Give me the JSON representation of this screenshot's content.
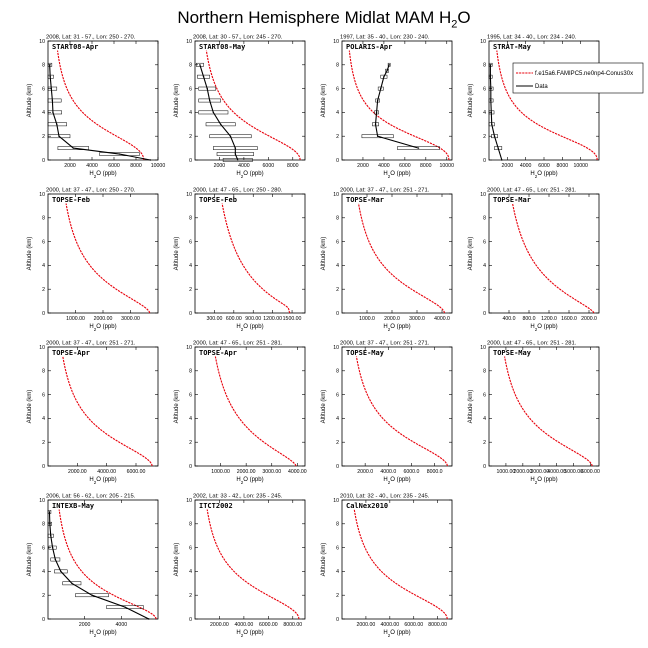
{
  "title": {
    "main": "Northern Hemisphere Midlat MAM H",
    "sub": "2",
    "tail": "O"
  },
  "legend": {
    "model_label": "f.e15a6.FAMIPC5.ne0np4-Conus30x",
    "data_label": "Data",
    "colors": {
      "model": "#e8000b",
      "data": "#000000"
    }
  },
  "axis_labels": {
    "ylabel": "Altitude (km)",
    "xlabel_main": "H",
    "xlabel_sub": "2",
    "xlabel_tail": "O (ppb)"
  },
  "chart_data": [
    {
      "type": "line",
      "header": "2008, Lat: 31 - 57., Lon: 250 - 270.",
      "title": "START08-Apr",
      "xlim": [
        0,
        10000
      ],
      "ylim": [
        0,
        10
      ],
      "xticks": [
        2000,
        4000,
        6000,
        8000,
        10000
      ],
      "xtick_labels": [
        "2000",
        "4000",
        "6000",
        "8000",
        "10000"
      ],
      "yticks": [
        0,
        2,
        4,
        6,
        8,
        10
      ],
      "ytick_labels": [
        "0",
        "2",
        "4",
        "6",
        "8",
        "10"
      ],
      "model": {
        "surface": 8700,
        "top": 200,
        "knee": 3.0,
        "p": 2.2,
        "mid": 0.44
      },
      "data": {
        "x": [
          9300,
          6500,
          2300,
          1000,
          800,
          450,
          400,
          300,
          200,
          150
        ],
        "y": [
          0,
          0.5,
          1,
          2,
          3,
          4,
          5,
          6,
          7,
          8
        ],
        "err": [
          0,
          1800,
          1400,
          1000,
          900,
          800,
          800,
          500,
          300,
          200
        ]
      }
    },
    {
      "type": "line",
      "header": "2008, Lat: 30 - 57., Lon: 245 - 270.",
      "title": "START08-May",
      "xlim": [
        0,
        9000
      ],
      "ylim": [
        0,
        10
      ],
      "xticks": [
        2000,
        4000,
        6000,
        8000
      ],
      "xtick_labels": [
        "2000",
        "4000",
        "6000",
        "8000"
      ],
      "yticks": [
        0,
        2,
        4,
        6,
        8,
        10
      ],
      "ytick_labels": [
        "0",
        "2",
        "4",
        "6",
        "8",
        "10"
      ],
      "model": {
        "surface": 8600,
        "top": 200,
        "knee": 3.0,
        "p": 2.1,
        "mid": 0.44
      },
      "data": {
        "x": [
          3500,
          3300,
          3300,
          2900,
          2100,
          1500,
          1200,
          1000,
          700,
          400
        ],
        "y": [
          0,
          0.5,
          1,
          2,
          3,
          4,
          5,
          6,
          7,
          8
        ],
        "err": [
          1200,
          1500,
          1800,
          1700,
          1200,
          1200,
          900,
          700,
          500,
          300
        ]
      }
    },
    {
      "type": "line",
      "header": "1997, Lat: 35 - 40., Lon: 230 - 240.",
      "title": "POLARIS-Apr",
      "xlim": [
        0,
        10500
      ],
      "ylim": [
        0,
        10
      ],
      "xticks": [
        2000,
        4000,
        6000,
        8000,
        10000
      ],
      "xtick_labels": [
        "2000",
        "4000",
        "6000",
        "8000",
        "10000"
      ],
      "yticks": [
        0,
        2,
        4,
        6,
        8,
        10
      ],
      "ytick_labels": [
        "0",
        "2",
        "4",
        "6",
        "8",
        "10"
      ],
      "model": {
        "surface": 10200,
        "top": 200,
        "knee": 2.7,
        "p": 2.4,
        "mid": 0.44
      },
      "data": {
        "x": [
          7300,
          3400,
          3200,
          3300,
          3400,
          3700,
          4000,
          4300,
          4500
        ],
        "y": [
          1,
          2,
          3,
          4,
          5,
          6,
          7,
          7.5,
          8
        ],
        "err": [
          2000,
          1500,
          300,
          200,
          200,
          250,
          300,
          150,
          100
        ]
      }
    },
    {
      "type": "line",
      "header": "1995, Lat: 34 - 40., Lon: 234 - 240.",
      "title": "STRAT-May",
      "xlim": [
        0,
        12000
      ],
      "ylim": [
        0,
        10
      ],
      "xticks": [
        2000,
        4000,
        6000,
        8000,
        10000
      ],
      "xtick_labels": [
        "2000",
        "4000",
        "6000",
        "8000",
        "10000"
      ],
      "yticks": [
        0,
        2,
        4,
        6,
        8,
        10
      ],
      "ytick_labels": [
        "0",
        "2",
        "4",
        "6",
        "8",
        "10"
      ],
      "model": {
        "surface": 11800,
        "top": 200,
        "knee": 2.7,
        "p": 2.3,
        "mid": 0.44
      },
      "data": {
        "x": [
          1400,
          1000,
          600,
          300,
          250,
          200,
          200,
          150,
          150
        ],
        "y": [
          0,
          1,
          2,
          3,
          4,
          5,
          6,
          7,
          8
        ],
        "err": [
          0,
          400,
          350,
          300,
          300,
          250,
          250,
          200,
          200
        ]
      },
      "has_legend": true
    },
    {
      "type": "line",
      "header": "2000, Lat: 37 - 47., Lon: 250 - 270.",
      "title": "TOPSE-Feb",
      "xlim": [
        0,
        4000
      ],
      "ylim": [
        0,
        10
      ],
      "xticks": [
        1000,
        2000,
        3000
      ],
      "xtick_labels": [
        "1000.00",
        "2000.00",
        "3000.00"
      ],
      "yticks": [
        0,
        2,
        4,
        6,
        8,
        10
      ],
      "ytick_labels": [
        "0",
        "2",
        "4",
        "6",
        "8",
        "10"
      ],
      "model": {
        "surface": 3700,
        "top": 150,
        "knee": 3.0,
        "p": 1.6,
        "mid": 0.42
      }
    },
    {
      "type": "line",
      "header": "2000, Lat: 47 - 65., Lon: 250 - 280.",
      "title": "TOPSE-Feb",
      "xlim": [
        0,
        1700
      ],
      "ylim": [
        0,
        10
      ],
      "xticks": [
        300,
        600,
        900,
        1200,
        1500
      ],
      "xtick_labels": [
        "300.00",
        "600.00",
        "900.00",
        "1200.00",
        "1500.00"
      ],
      "yticks": [
        0,
        2,
        4,
        6,
        8,
        10
      ],
      "ytick_labels": [
        "0",
        "2",
        "4",
        "6",
        "8",
        "10"
      ],
      "model": {
        "surface": 1580,
        "top": 80,
        "knee": 3.3,
        "p": 1.2,
        "mid": 0.45,
        "bulge": 1
      }
    },
    {
      "type": "line",
      "header": "2000, Lat: 37 - 47., Lon: 251 - 271.",
      "title": "TOPSE-Mar",
      "xlim": [
        0,
        4400
      ],
      "ylim": [
        0,
        10
      ],
      "xticks": [
        1000,
        2000,
        3000,
        4000
      ],
      "xtick_labels": [
        "1000.0",
        "2000.0",
        "3000.0",
        "4000.0"
      ],
      "yticks": [
        0,
        2,
        4,
        6,
        8,
        10
      ],
      "ytick_labels": [
        "0",
        "2",
        "4",
        "6",
        "8",
        "10"
      ],
      "model": {
        "surface": 4100,
        "top": 150,
        "knee": 3.0,
        "p": 1.7,
        "mid": 0.42
      }
    },
    {
      "type": "line",
      "header": "2000, Lat: 47 - 65., Lon: 251 - 281.",
      "title": "TOPSE-Mar",
      "xlim": [
        0,
        2200
      ],
      "ylim": [
        0,
        10
      ],
      "xticks": [
        400,
        800,
        1200,
        1600,
        2000
      ],
      "xtick_labels": [
        "400.0",
        "800.0",
        "1200.0",
        "1600.0",
        "2000.0"
      ],
      "yticks": [
        0,
        2,
        4,
        6,
        8,
        10
      ],
      "ytick_labels": [
        "0",
        "2",
        "4",
        "6",
        "8",
        "10"
      ],
      "model": {
        "surface": 2100,
        "top": 100,
        "knee": 3.2,
        "p": 1.4,
        "mid": 0.44
      }
    },
    {
      "type": "line",
      "header": "2000, Lat: 37 - 47., Lon: 251 - 271.",
      "title": "TOPSE-Apr",
      "xlim": [
        0,
        7500
      ],
      "ylim": [
        0,
        10
      ],
      "xticks": [
        2000,
        4000,
        6000
      ],
      "xtick_labels": [
        "2000.00",
        "4000.00",
        "6000.00"
      ],
      "yticks": [
        0,
        2,
        4,
        6,
        8,
        10
      ],
      "ytick_labels": [
        "0",
        "2",
        "4",
        "6",
        "8",
        "10"
      ],
      "model": {
        "surface": 7100,
        "top": 200,
        "knee": 3.0,
        "p": 1.8,
        "mid": 0.42
      }
    },
    {
      "type": "line",
      "header": "2000, Lat: 47 - 65., Lon: 251 - 281.",
      "title": "TOPSE-Apr",
      "xlim": [
        0,
        4300
      ],
      "ylim": [
        0,
        10
      ],
      "xticks": [
        1000,
        2000,
        3000,
        4000
      ],
      "xtick_labels": [
        "1000.00",
        "2000.00",
        "3000.00",
        "4000.00"
      ],
      "yticks": [
        0,
        2,
        4,
        6,
        8,
        10
      ],
      "ytick_labels": [
        "0",
        "2",
        "4",
        "6",
        "8",
        "10"
      ],
      "model": {
        "surface": 3950,
        "top": 150,
        "knee": 3.2,
        "p": 1.5,
        "mid": 0.44
      }
    },
    {
      "type": "line",
      "header": "2000, Lat: 37 - 47., Lon: 251 - 271.",
      "title": "TOPSE-May",
      "xlim": [
        0,
        9500
      ],
      "ylim": [
        0,
        10
      ],
      "xticks": [
        2000,
        4000,
        6000,
        8000
      ],
      "xtick_labels": [
        "2000.0",
        "4000.0",
        "6000.0",
        "8000.0"
      ],
      "yticks": [
        0,
        2,
        4,
        6,
        8,
        10
      ],
      "ytick_labels": [
        "0",
        "2",
        "4",
        "6",
        "8",
        "10"
      ],
      "model": {
        "surface": 9100,
        "top": 200,
        "knee": 3.0,
        "p": 1.8,
        "mid": 0.42
      }
    },
    {
      "type": "line",
      "header": "2000, Lat: 47 - 65., Lon: 251 - 281.",
      "title": "TOPSE-May",
      "xlim": [
        0,
        6500
      ],
      "ylim": [
        0,
        10
      ],
      "xticks": [
        1000,
        2000,
        3000,
        4000,
        5000,
        6000
      ],
      "xtick_labels": [
        "1000.00",
        "2000.00",
        "3000.00",
        "4000.00",
        "5000.00",
        "6000.00"
      ],
      "yticks": [
        0,
        2,
        4,
        6,
        8,
        10
      ],
      "ytick_labels": [
        "0",
        "2",
        "4",
        "6",
        "8",
        "10"
      ],
      "model": {
        "surface": 6100,
        "top": 150,
        "knee": 3.0,
        "p": 1.7,
        "mid": 0.42
      }
    },
    {
      "type": "line",
      "header": "2006, Lat: 56 - 62., Lon: 205 - 215.",
      "title": "INTEXB-May",
      "xlim": [
        0,
        6000
      ],
      "ylim": [
        0,
        10
      ],
      "xticks": [
        2000,
        4000
      ],
      "xtick_labels": [
        "2000",
        "4000"
      ],
      "yticks": [
        0,
        2,
        4,
        6,
        8,
        10
      ],
      "ytick_labels": [
        "0",
        "2",
        "4",
        "6",
        "8",
        "10"
      ],
      "model": {
        "surface": 5900,
        "top": 100,
        "knee": 2.5,
        "p": 1.8,
        "mid": 0.43
      },
      "data": {
        "x": [
          5500,
          4200,
          2400,
          1300,
          700,
          400,
          250,
          150,
          100,
          80
        ],
        "y": [
          0,
          1,
          2,
          3,
          4,
          5,
          6,
          7,
          8,
          9
        ],
        "err": [
          0,
          1000,
          900,
          500,
          350,
          250,
          200,
          150,
          100,
          80
        ]
      }
    },
    {
      "type": "line",
      "header": "2002, Lat: 33 - 42., Lon: 235 - 245.",
      "title": "ITCT2002",
      "xlim": [
        0,
        9000
      ],
      "ylim": [
        0,
        10
      ],
      "xticks": [
        2000,
        4000,
        6000,
        8000
      ],
      "xtick_labels": [
        "2000.00",
        "4000.00",
        "6000.00",
        "8000.00"
      ],
      "yticks": [
        0,
        2,
        4,
        6,
        8,
        10
      ],
      "ytick_labels": [
        "0",
        "2",
        "4",
        "6",
        "8",
        "10"
      ],
      "model": {
        "surface": 8500,
        "top": 200,
        "knee": 3.0,
        "p": 2.0,
        "mid": 0.42
      }
    },
    {
      "type": "line",
      "header": "2010, Lat: 32 - 40., Lon: 235 - 245.",
      "title": "CalNex2010",
      "xlim": [
        0,
        9200
      ],
      "ylim": [
        0,
        10
      ],
      "xticks": [
        2000,
        4000,
        6000,
        8000
      ],
      "xtick_labels": [
        "2000.00",
        "4000.00",
        "6000.00",
        "8000.00"
      ],
      "yticks": [
        0,
        2,
        4,
        6,
        8,
        10
      ],
      "ytick_labels": [
        "0",
        "2",
        "4",
        "6",
        "8",
        "10"
      ],
      "model": {
        "surface": 8800,
        "top": 200,
        "knee": 3.0,
        "p": 2.0,
        "mid": 0.42
      }
    }
  ]
}
